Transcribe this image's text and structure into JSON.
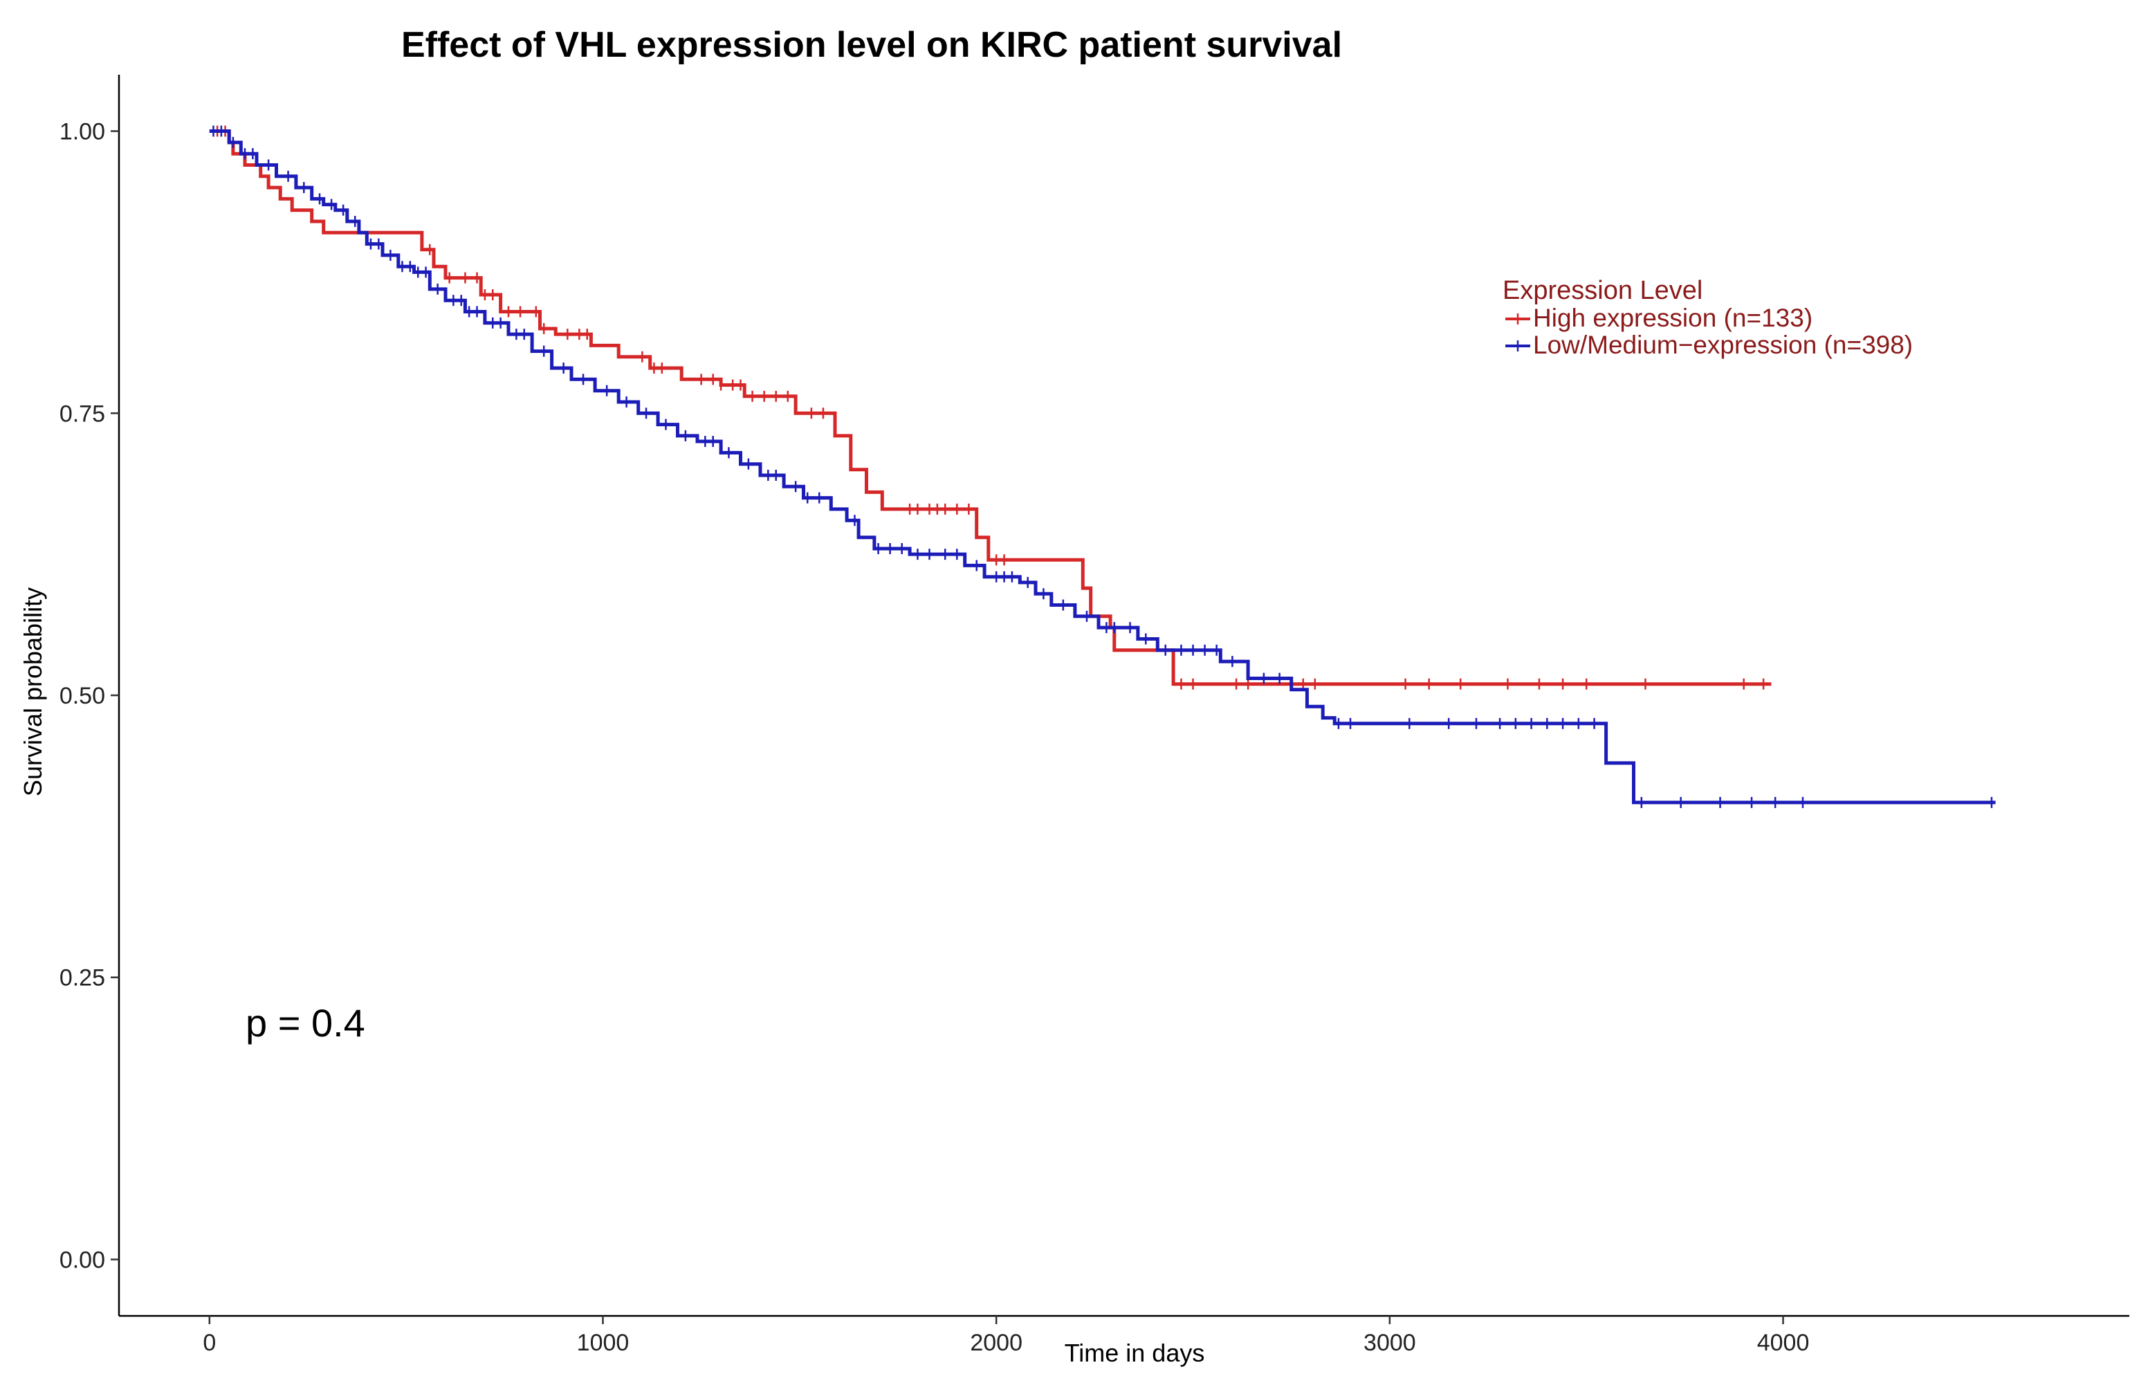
{
  "chart_data": {
    "type": "line",
    "title": "Effect of VHL expression level on KIRC patient survival",
    "xlabel": "Time in days",
    "ylabel": "Survival probability",
    "xlim": [
      -230,
      4880
    ],
    "ylim": [
      -0.05,
      1.05
    ],
    "x_ticks": [
      0,
      1000,
      2000,
      3000,
      4000
    ],
    "x_tick_labels": [
      "0",
      "1000",
      "2000",
      "3000",
      "4000"
    ],
    "y_ticks": [
      0,
      0.25,
      0.5,
      0.75,
      1.0
    ],
    "y_tick_labels": [
      "0.00",
      "0.25",
      "0.50",
      "0.75",
      "1.00"
    ],
    "grid": false,
    "legend": {
      "title": "Expression Level",
      "placement": "top-right",
      "color": "#8b1a1a"
    },
    "annotation": "p = 0.4",
    "series": [
      {
        "name": "High expression (n=133)",
        "color": "#d62728",
        "steps": [
          [
            0,
            1.0
          ],
          [
            50,
            0.99
          ],
          [
            60,
            0.98
          ],
          [
            90,
            0.97
          ],
          [
            130,
            0.96
          ],
          [
            150,
            0.95
          ],
          [
            180,
            0.94
          ],
          [
            210,
            0.93
          ],
          [
            260,
            0.92
          ],
          [
            290,
            0.91
          ],
          [
            540,
            0.895
          ],
          [
            570,
            0.88
          ],
          [
            600,
            0.87
          ],
          [
            690,
            0.855
          ],
          [
            740,
            0.84
          ],
          [
            840,
            0.825
          ],
          [
            880,
            0.82
          ],
          [
            970,
            0.81
          ],
          [
            1040,
            0.8
          ],
          [
            1120,
            0.79
          ],
          [
            1200,
            0.78
          ],
          [
            1300,
            0.775
          ],
          [
            1360,
            0.765
          ],
          [
            1490,
            0.75
          ],
          [
            1590,
            0.73
          ],
          [
            1630,
            0.7
          ],
          [
            1670,
            0.68
          ],
          [
            1710,
            0.665
          ],
          [
            1950,
            0.64
          ],
          [
            1980,
            0.62
          ],
          [
            2220,
            0.595
          ],
          [
            2240,
            0.57
          ],
          [
            2290,
            0.56
          ],
          [
            2300,
            0.54
          ],
          [
            2450,
            0.51
          ],
          [
            3970,
            0.51
          ]
        ],
        "censor": [
          20,
          40,
          560,
          610,
          650,
          680,
          700,
          720,
          760,
          790,
          830,
          850,
          910,
          940,
          960,
          1100,
          1130,
          1150,
          1250,
          1280,
          1300,
          1330,
          1350,
          1380,
          1410,
          1440,
          1470,
          1530,
          1560,
          1780,
          1800,
          1830,
          1850,
          1870,
          1900,
          1930,
          2000,
          2020,
          2470,
          2500,
          2610,
          2640,
          2780,
          2810,
          3040,
          3100,
          3180,
          3300,
          3380,
          3440,
          3500,
          3650,
          3900,
          3950
        ]
      },
      {
        "name": "Low/Medium−expression (n=398)",
        "color": "#1c1cb8",
        "steps": [
          [
            0,
            1.0
          ],
          [
            50,
            0.99
          ],
          [
            80,
            0.98
          ],
          [
            120,
            0.97
          ],
          [
            170,
            0.96
          ],
          [
            220,
            0.95
          ],
          [
            260,
            0.94
          ],
          [
            290,
            0.935
          ],
          [
            320,
            0.93
          ],
          [
            350,
            0.92
          ],
          [
            380,
            0.91
          ],
          [
            400,
            0.9
          ],
          [
            440,
            0.89
          ],
          [
            480,
            0.88
          ],
          [
            520,
            0.875
          ],
          [
            560,
            0.86
          ],
          [
            600,
            0.85
          ],
          [
            650,
            0.84
          ],
          [
            700,
            0.83
          ],
          [
            760,
            0.82
          ],
          [
            820,
            0.805
          ],
          [
            870,
            0.79
          ],
          [
            920,
            0.78
          ],
          [
            980,
            0.77
          ],
          [
            1040,
            0.76
          ],
          [
            1090,
            0.75
          ],
          [
            1140,
            0.74
          ],
          [
            1190,
            0.73
          ],
          [
            1240,
            0.725
          ],
          [
            1300,
            0.715
          ],
          [
            1350,
            0.705
          ],
          [
            1400,
            0.695
          ],
          [
            1460,
            0.685
          ],
          [
            1510,
            0.675
          ],
          [
            1580,
            0.665
          ],
          [
            1620,
            0.655
          ],
          [
            1650,
            0.64
          ],
          [
            1690,
            0.63
          ],
          [
            1780,
            0.625
          ],
          [
            1920,
            0.615
          ],
          [
            1970,
            0.605
          ],
          [
            2060,
            0.6
          ],
          [
            2100,
            0.59
          ],
          [
            2140,
            0.58
          ],
          [
            2200,
            0.57
          ],
          [
            2260,
            0.56
          ],
          [
            2360,
            0.55
          ],
          [
            2410,
            0.54
          ],
          [
            2570,
            0.53
          ],
          [
            2640,
            0.515
          ],
          [
            2750,
            0.505
          ],
          [
            2790,
            0.49
          ],
          [
            2830,
            0.48
          ],
          [
            2860,
            0.475
          ],
          [
            3550,
            0.44
          ],
          [
            3620,
            0.405
          ],
          [
            4540,
            0.405
          ]
        ],
        "censor": [
          10,
          30,
          60,
          90,
          110,
          150,
          200,
          240,
          280,
          310,
          340,
          370,
          410,
          430,
          460,
          490,
          510,
          530,
          550,
          580,
          620,
          640,
          660,
          680,
          720,
          740,
          780,
          800,
          850,
          900,
          950,
          1010,
          1060,
          1110,
          1160,
          1210,
          1260,
          1280,
          1320,
          1370,
          1420,
          1440,
          1490,
          1520,
          1550,
          1640,
          1700,
          1730,
          1760,
          1800,
          1830,
          1870,
          1900,
          1950,
          2000,
          2020,
          2040,
          2080,
          2120,
          2170,
          2230,
          2280,
          2300,
          2340,
          2380,
          2430,
          2470,
          2500,
          2530,
          2560,
          2600,
          2680,
          2720,
          2870,
          2900,
          3050,
          3150,
          3220,
          3280,
          3320,
          3360,
          3400,
          3440,
          3480,
          3520,
          3640,
          3740,
          3840,
          3920,
          3980,
          4050,
          4530
        ]
      }
    ]
  }
}
